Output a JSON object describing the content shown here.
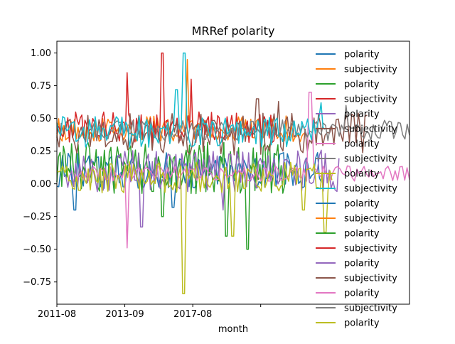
{
  "chart_data": {
    "type": "line",
    "title": "MRRef polarity",
    "xlabel": "month",
    "ylabel": "",
    "x_tick_labels": [
      "2011-08",
      "2013-09",
      "2017-08",
      ""
    ],
    "y_ticks": [
      -0.75,
      -0.5,
      -0.25,
      0.0,
      0.25,
      0.5,
      0.75,
      1.0
    ],
    "y_tick_labels": [
      "−0.75",
      "−0.50",
      "−0.25",
      "0.00",
      "0.25",
      "0.50",
      "0.75",
      "1.00"
    ],
    "ylim": [
      -0.92,
      1.09
    ],
    "legend_position": "upper right (overflowing)",
    "colors": [
      "#1f77b4",
      "#ff7f0e",
      "#2ca02c",
      "#d62728",
      "#9467bd",
      "#8c564b",
      "#e377c2",
      "#7f7f7f",
      "#bcbd22",
      "#17becf"
    ],
    "series": [
      {
        "name": "polarity",
        "color": "#1f77b4",
        "start": 0.0,
        "end": 0.75,
        "mean": 0.1,
        "amp": 0.07,
        "seed": 1,
        "spikes": [
          [
            0.05,
            -0.2
          ],
          [
            0.33,
            -0.18
          ]
        ]
      },
      {
        "name": "subjectivity",
        "color": "#ff7f0e",
        "start": 0.0,
        "end": 0.7,
        "mean": 0.42,
        "amp": 0.05,
        "seed": 2,
        "spikes": [
          [
            0.37,
            0.95
          ]
        ]
      },
      {
        "name": "polarity",
        "color": "#2ca02c",
        "start": 0.0,
        "end": 0.65,
        "mean": 0.12,
        "amp": 0.1,
        "seed": 3,
        "spikes": [
          [
            0.3,
            -0.25
          ],
          [
            0.48,
            -0.4
          ],
          [
            0.54,
            -0.5
          ]
        ]
      },
      {
        "name": "subjectivity",
        "color": "#d62728",
        "start": 0.0,
        "end": 0.62,
        "mean": 0.43,
        "amp": 0.06,
        "seed": 4,
        "spikes": [
          [
            0.2,
            0.85
          ],
          [
            0.3,
            1.0
          ],
          [
            0.38,
            0.8
          ]
        ]
      },
      {
        "name": "polarity",
        "color": "#9467bd",
        "start": 0.02,
        "end": 0.8,
        "mean": 0.1,
        "amp": 0.08,
        "seed": 5,
        "spikes": [
          [
            0.24,
            -0.33
          ],
          [
            0.47,
            -0.2
          ]
        ]
      },
      {
        "name": "subjectivity",
        "color": "#8c564b",
        "start": 0.0,
        "end": 0.88,
        "mean": 0.38,
        "amp": 0.08,
        "seed": 6,
        "spikes": [
          [
            0.57,
            0.65
          ],
          [
            0.63,
            0.63
          ]
        ]
      },
      {
        "name": "polarity",
        "color": "#e377c2",
        "start": 0.05,
        "end": 1.0,
        "mean": 0.08,
        "amp": 0.03,
        "seed": 7,
        "spikes": [
          [
            0.2,
            -0.49
          ],
          [
            0.72,
            0.7
          ]
        ]
      },
      {
        "name": "subjectivity",
        "color": "#7f7f7f",
        "start": 0.1,
        "end": 1.0,
        "mean": 0.41,
        "amp": 0.04,
        "seed": 8,
        "spikes": [
          [
            0.82,
            0.6
          ]
        ]
      },
      {
        "name": "polarity",
        "color": "#bcbd22",
        "start": 0.0,
        "end": 0.78,
        "mean": 0.05,
        "amp": 0.06,
        "seed": 9,
        "spikes": [
          [
            0.36,
            -0.84
          ],
          [
            0.5,
            -0.4
          ],
          [
            0.7,
            -0.2
          ],
          [
            0.76,
            -0.37
          ]
        ]
      },
      {
        "name": "subjectivity",
        "color": "#17becf",
        "start": 0.0,
        "end": 0.76,
        "mean": 0.4,
        "amp": 0.06,
        "seed": 10,
        "spikes": [
          [
            0.36,
            1.0
          ],
          [
            0.34,
            0.72
          ],
          [
            0.75,
            0.62
          ]
        ]
      },
      {
        "name": "polarity",
        "color": "#1f77b4"
      },
      {
        "name": "subjectivity",
        "color": "#ff7f0e"
      },
      {
        "name": "polarity",
        "color": "#2ca02c"
      },
      {
        "name": "subjectivity",
        "color": "#d62728"
      },
      {
        "name": "polarity",
        "color": "#9467bd"
      },
      {
        "name": "subjectivity",
        "color": "#8c564b"
      },
      {
        "name": "polarity",
        "color": "#e377c2"
      },
      {
        "name": "subjectivity",
        "color": "#7f7f7f"
      },
      {
        "name": "polarity",
        "color": "#bcbd22"
      },
      {
        "name": "subjectivity",
        "color": "#17becf"
      }
    ]
  }
}
